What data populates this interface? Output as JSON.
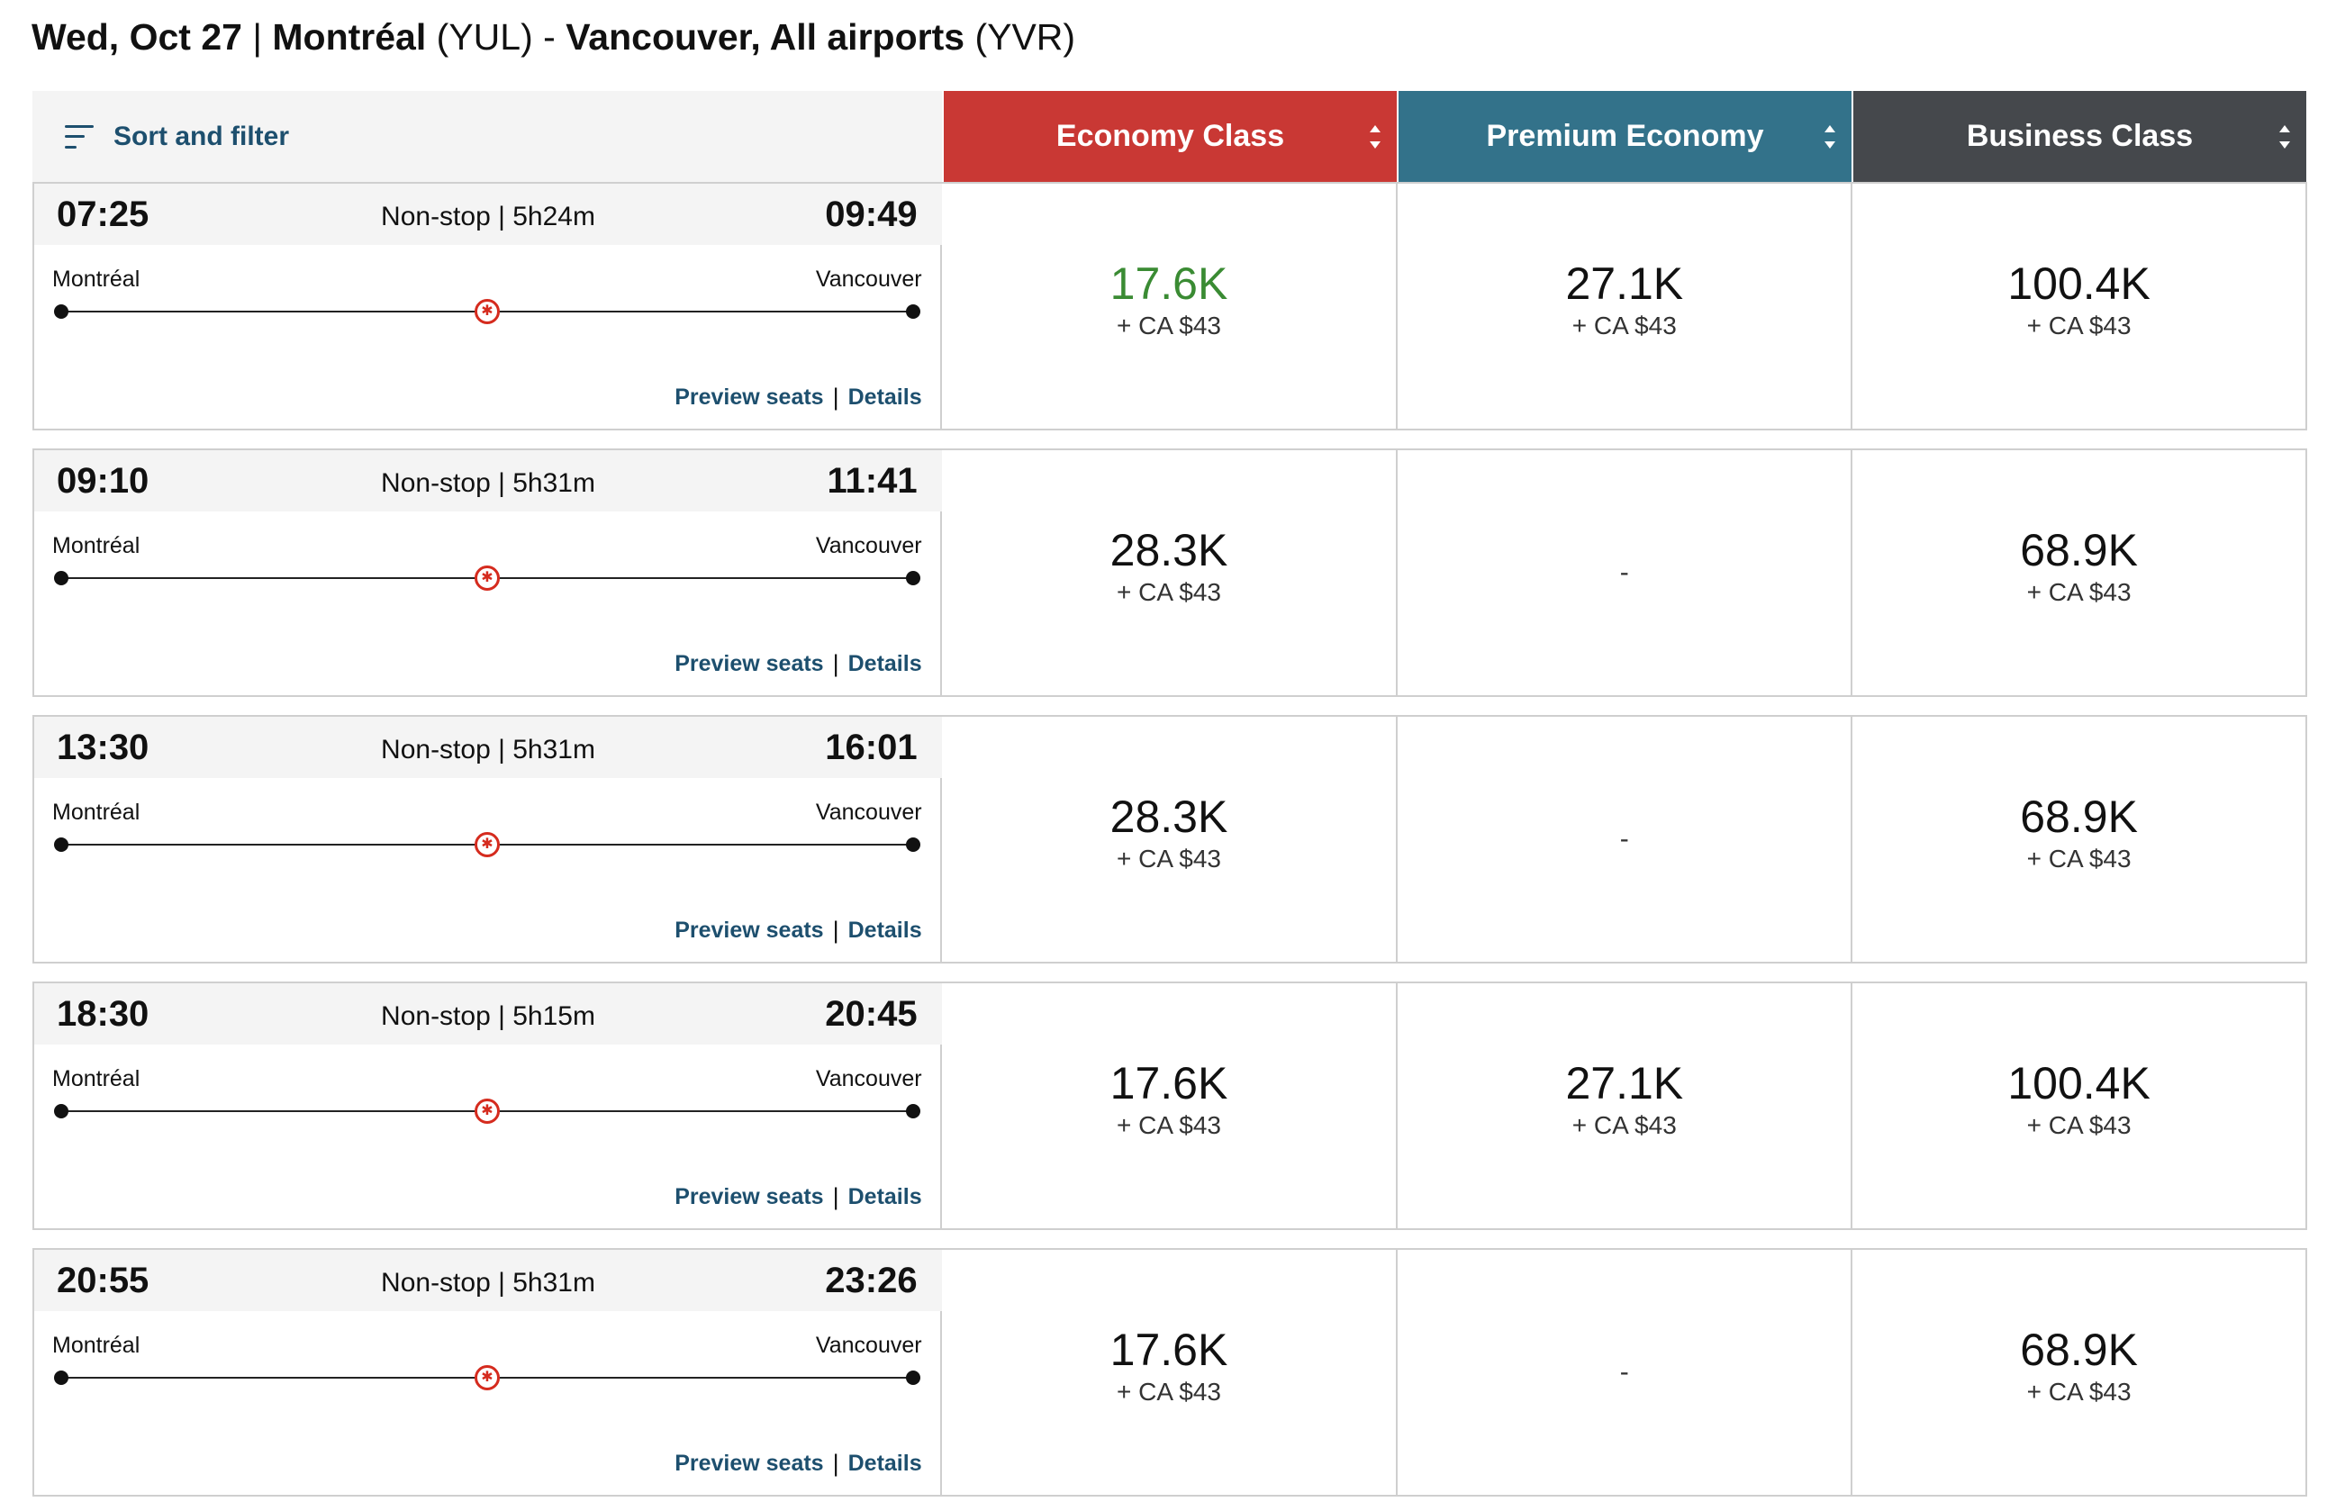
{
  "title": {
    "date": "Wed, Oct 27",
    "separator": "|",
    "origin_city": "Montréal",
    "origin_code": "(YUL)",
    "dash": "-",
    "destination_city": "Vancouver, All airports",
    "destination_code": "(YVR)"
  },
  "sort_filter": {
    "label": "Sort and filter",
    "icon": "sort-filter-icon"
  },
  "cabins": [
    {
      "label": "Economy Class",
      "color": "#c93834"
    },
    {
      "label": "Premium Economy",
      "color": "#33728a"
    },
    {
      "label": "Business Class",
      "color": "#45484c"
    }
  ],
  "link_labels": {
    "preview": "Preview seats",
    "details": "Details",
    "separator": "|"
  },
  "flights": [
    {
      "departure": "07:25",
      "arrival": "09:49",
      "duration": "Non-stop | 5h24m",
      "origin": "Montréal",
      "destination": "Vancouver",
      "fares": [
        {
          "points": "17.6K",
          "tax": "+ CA $43",
          "best": true
        },
        {
          "points": "27.1K",
          "tax": "+ CA $43"
        },
        {
          "points": "100.4K",
          "tax": "+ CA $43"
        }
      ]
    },
    {
      "departure": "09:10",
      "arrival": "11:41",
      "duration": "Non-stop | 5h31m",
      "origin": "Montréal",
      "destination": "Vancouver",
      "fares": [
        {
          "points": "28.3K",
          "tax": "+ CA $43"
        },
        {
          "none": "-"
        },
        {
          "points": "68.9K",
          "tax": "+ CA $43"
        }
      ]
    },
    {
      "departure": "13:30",
      "arrival": "16:01",
      "duration": "Non-stop | 5h31m",
      "origin": "Montréal",
      "destination": "Vancouver",
      "fares": [
        {
          "points": "28.3K",
          "tax": "+ CA $43"
        },
        {
          "none": "-"
        },
        {
          "points": "68.9K",
          "tax": "+ CA $43"
        }
      ]
    },
    {
      "departure": "18:30",
      "arrival": "20:45",
      "duration": "Non-stop | 5h15m",
      "origin": "Montréal",
      "destination": "Vancouver",
      "fares": [
        {
          "points": "17.6K",
          "tax": "+ CA $43"
        },
        {
          "points": "27.1K",
          "tax": "+ CA $43"
        },
        {
          "points": "100.4K",
          "tax": "+ CA $43"
        }
      ]
    },
    {
      "departure": "20:55",
      "arrival": "23:26",
      "duration": "Non-stop | 5h31m",
      "origin": "Montréal",
      "destination": "Vancouver",
      "fares": [
        {
          "points": "17.6K",
          "tax": "+ CA $43"
        },
        {
          "none": "-"
        },
        {
          "points": "68.9K",
          "tax": "+ CA $43"
        }
      ]
    }
  ],
  "icons": {
    "airline": "maple-leaf-icon",
    "sort": "sort-arrows-icon"
  },
  "colors": {
    "best_fare": "#3a8b33",
    "link": "#1d4f6e",
    "airline_red": "#d52b1e"
  }
}
